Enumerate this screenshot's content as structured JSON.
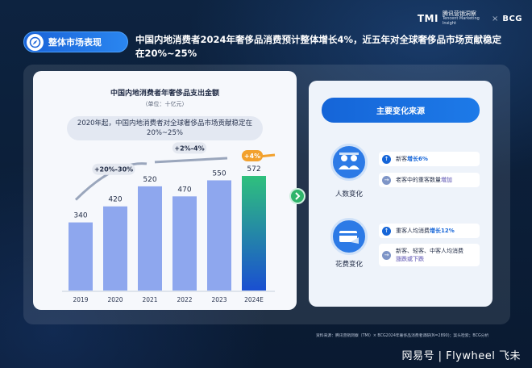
{
  "header": {
    "logo_tmi": "TMI",
    "logo_tmi_sub_cn": "腾讯营销洞察",
    "logo_tmi_sub_en": "Tencent Marketing Insight",
    "logo_sep": "×",
    "logo_bcg": "BCG",
    "badge_label": "整体市场表现",
    "title": "中国内地消费者2024年奢侈品消费预计整体增长4%，近五年对全球奢侈品市场贡献稳定在20%~25%"
  },
  "chart": {
    "note": "2020年起，中国内地消费者对全球奢侈品市场贡献稳定在20%~25%"
  },
  "chart_data": {
    "type": "bar",
    "title": "中国内地消费者年奢侈品支出金额",
    "unit": "（单位：十亿元）",
    "categories": [
      "2019",
      "2020",
      "2021",
      "2022",
      "2023",
      "2024E"
    ],
    "values": [
      340,
      420,
      520,
      470,
      550,
      572
    ],
    "annotations": [
      "+20%-30%",
      "+2%-4%",
      "+4%"
    ],
    "colors": {
      "bar": "#8ea7ee",
      "highlight_top": "#2fc07d",
      "highlight_bottom": "#1a4fd1",
      "arrow_orange": "#f2a12e"
    }
  },
  "right": {
    "header": "主要变化来源",
    "group1": {
      "icon": "people-icon",
      "label": "人数变化",
      "item1_prefix": "新客",
      "item1_highlight": "增长6%",
      "item2_prefix": "老客中的重客数量",
      "item2_highlight": "增加"
    },
    "group2": {
      "icon": "card-icon",
      "label": "花费变化",
      "item1_prefix": "重客人均消费",
      "item1_highlight": "增长12%",
      "item2_line1": "新客、轻客、中客人均消费",
      "item2_highlight": "涨跌或下跌"
    }
  },
  "footer": {
    "source": "资料来源：腾讯营销洞察（TMI）× BCG2024年奢侈品消费者调研(N=2890)；案头检索；BCG分析",
    "watermark": "网易号 | Flywheel 飞未"
  }
}
